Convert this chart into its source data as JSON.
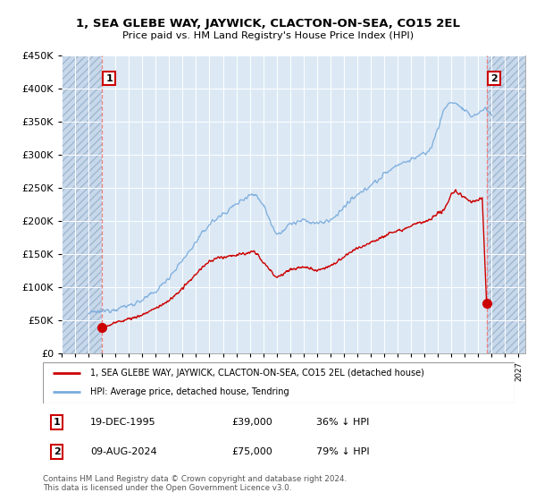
{
  "title": "1, SEA GLEBE WAY, JAYWICK, CLACTON-ON-SEA, CO15 2EL",
  "subtitle": "Price paid vs. HM Land Registry's House Price Index (HPI)",
  "legend_line1": "1, SEA GLEBE WAY, JAYWICK, CLACTON-ON-SEA, CO15 2EL (detached house)",
  "legend_line2": "HPI: Average price, detached house, Tendring",
  "annotation1_date": "19-DEC-1995",
  "annotation1_price": "£39,000",
  "annotation1_hpi": "36% ↓ HPI",
  "annotation2_date": "09-AUG-2024",
  "annotation2_price": "£75,000",
  "annotation2_hpi": "79% ↓ HPI",
  "footnote": "Contains HM Land Registry data © Crown copyright and database right 2024.\nThis data is licensed under the Open Government Licence v3.0.",
  "plot_bg": "#dce9f5",
  "red_color": "#cc0000",
  "blue_color": "#7aabdc",
  "dashed_red": "#f08080",
  "ylim": [
    0,
    450000
  ],
  "yticks": [
    0,
    50000,
    100000,
    150000,
    200000,
    250000,
    300000,
    350000,
    400000,
    450000
  ],
  "ytick_labels": [
    "£0",
    "£50K",
    "£100K",
    "£150K",
    "£200K",
    "£250K",
    "£300K",
    "£350K",
    "£400K",
    "£450K"
  ],
  "xlim_start": 1993.0,
  "xlim_end": 2027.5,
  "sale1_x": 1995.97,
  "sale1_y": 39000,
  "sale2_x": 2024.62,
  "sale2_y": 75000
}
